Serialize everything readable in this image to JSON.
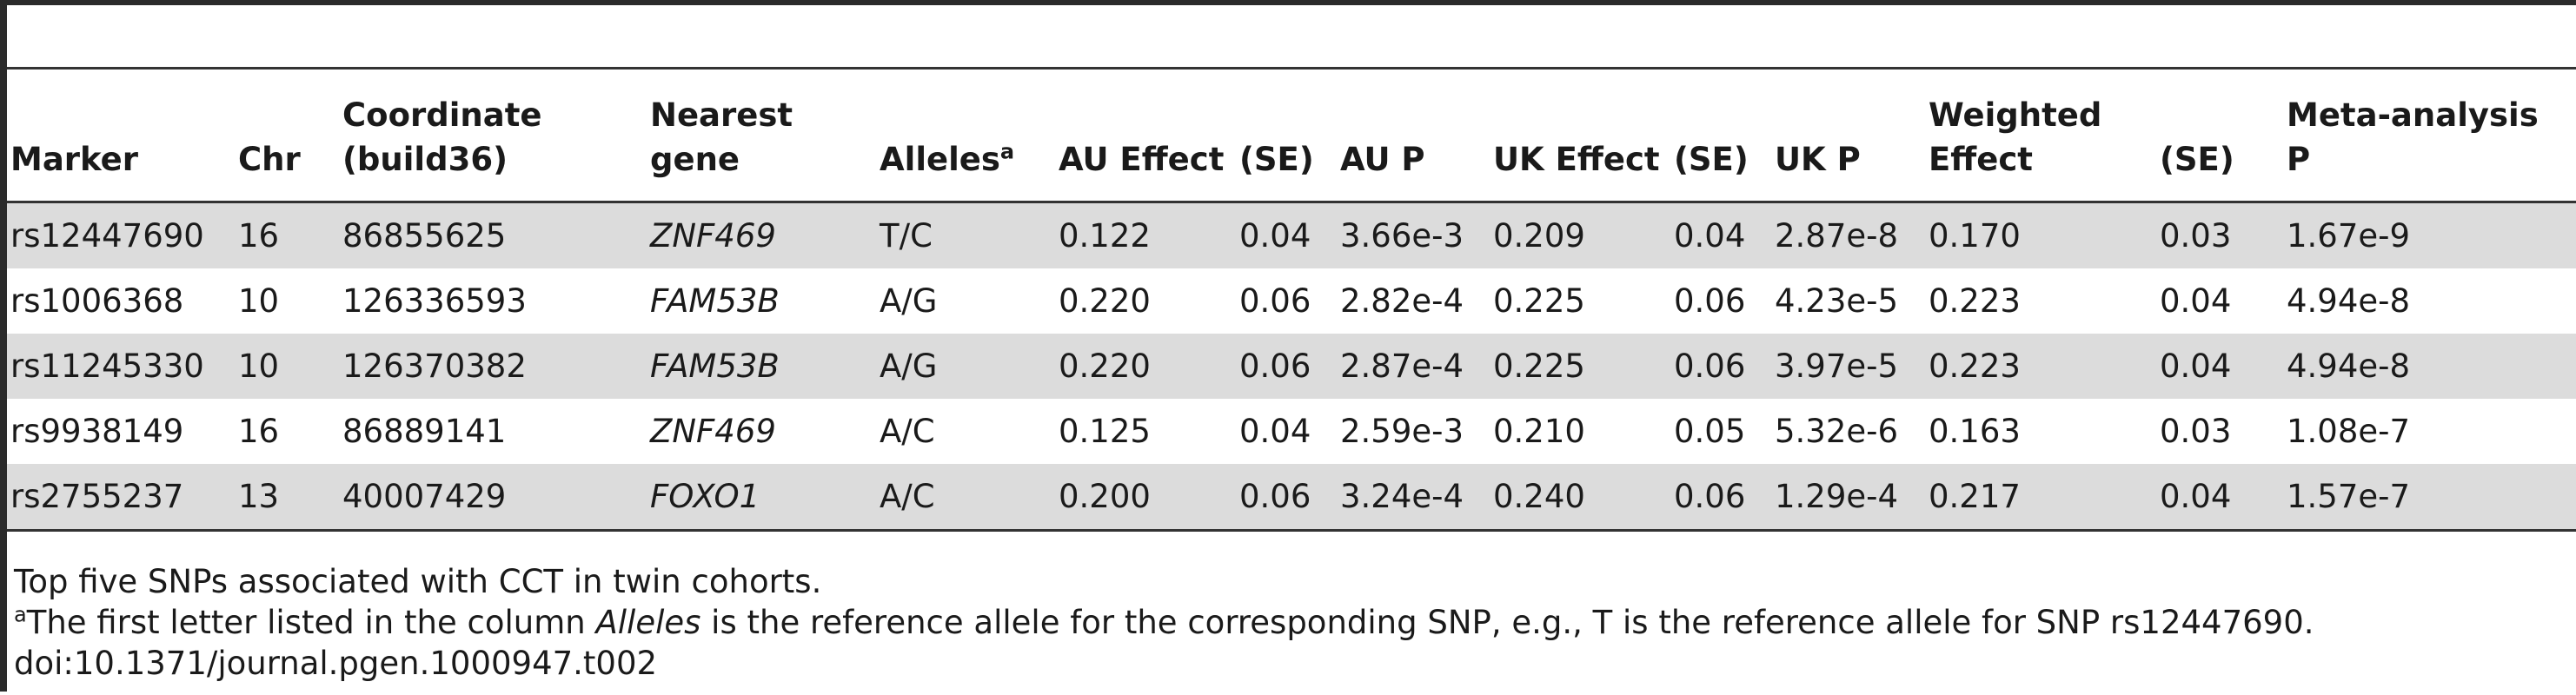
{
  "table": {
    "headers": [
      {
        "label": "Marker",
        "sup": ""
      },
      {
        "label": "Chr",
        "sup": ""
      },
      {
        "label": "Coordinate (build36)",
        "sup": ""
      },
      {
        "label": "Nearest gene",
        "sup": ""
      },
      {
        "label": "Alleles",
        "sup": "a"
      },
      {
        "label": "AU Effect",
        "sup": ""
      },
      {
        "label": "(SE)",
        "sup": ""
      },
      {
        "label": "AU P",
        "sup": ""
      },
      {
        "label": "UK Effect",
        "sup": ""
      },
      {
        "label": "(SE)",
        "sup": ""
      },
      {
        "label": "UK P",
        "sup": ""
      },
      {
        "label": "Weighted Effect",
        "sup": ""
      },
      {
        "label": "(SE)",
        "sup": ""
      },
      {
        "label": "Meta-analysis P",
        "sup": ""
      }
    ],
    "rows": [
      [
        "rs12447690",
        "16",
        "86855625",
        "ZNF469",
        "T/C",
        "0.122",
        "0.04",
        "3.66e-3",
        "0.209",
        "0.04",
        "2.87e-8",
        "0.170",
        "0.03",
        "1.67e-9"
      ],
      [
        "rs1006368",
        "10",
        "126336593",
        "FAM53B",
        "A/G",
        "0.220",
        "0.06",
        "2.82e-4",
        "0.225",
        "0.06",
        "4.23e-5",
        "0.223",
        "0.04",
        "4.94e-8"
      ],
      [
        "rs11245330",
        "10",
        "126370382",
        "FAM53B",
        "A/G",
        "0.220",
        "0.06",
        "2.87e-4",
        "0.225",
        "0.06",
        "3.97e-5",
        "0.223",
        "0.04",
        "4.94e-8"
      ],
      [
        "rs9938149",
        "16",
        "86889141",
        "ZNF469",
        "A/C",
        "0.125",
        "0.04",
        "2.59e-3",
        "0.210",
        "0.05",
        "5.32e-6",
        "0.163",
        "0.03",
        "1.08e-7"
      ],
      [
        "rs2755237",
        "13",
        "40007429",
        "FOXO1",
        "A/C",
        "0.200",
        "0.06",
        "3.24e-4",
        "0.240",
        "0.06",
        "1.29e-4",
        "0.217",
        "0.04",
        "1.57e-7"
      ]
    ]
  },
  "footnotes": {
    "caption": "Top five SNPs associated with CCT in twin cohorts.",
    "note_marker": "a",
    "note_before": "The first letter listed in the column ",
    "note_emphasis": "Alleles",
    "note_after": " is the reference allele for the corresponding SNP, e.g., T is the reference allele for SNP rs12447690.",
    "doi": "doi:10.1371/journal.pgen.1000947.t002"
  },
  "colors": {
    "row_shade": "#dcdcdc",
    "rule": "#333333",
    "frame": "#2b2b2b"
  }
}
